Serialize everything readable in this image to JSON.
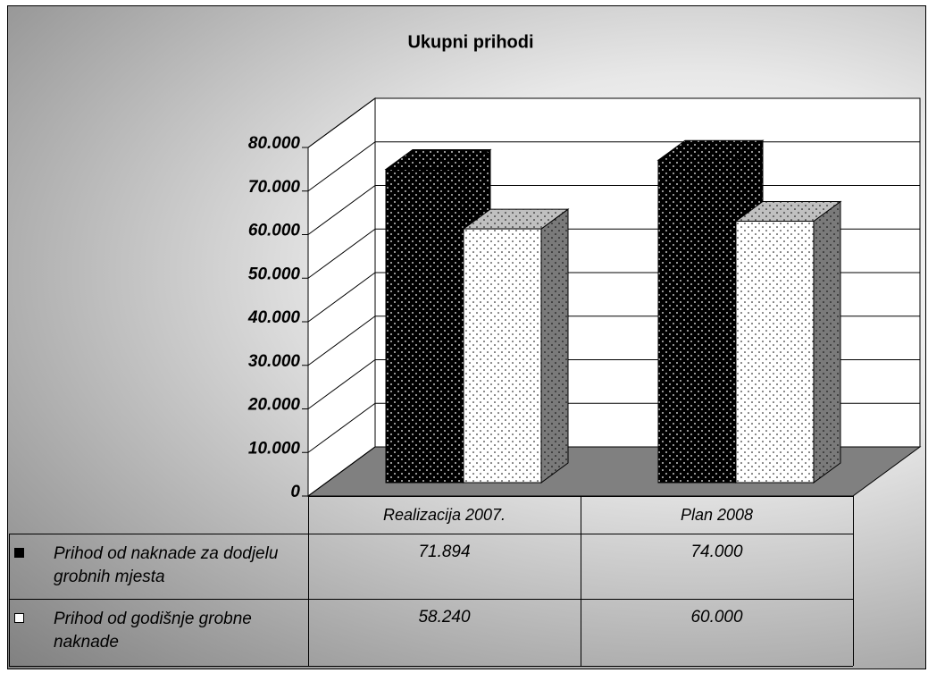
{
  "chart_data": {
    "type": "bar3d",
    "title": "Ukupni prihodi",
    "categories": [
      "Realizacija 2007.",
      "Plan 2008"
    ],
    "series": [
      {
        "name": "Prihod od naknade za dodjelu grobnih mjesta",
        "color": "#000000",
        "values": [
          71894,
          74000
        ],
        "value_labels": [
          "71.894",
          "74.000"
        ]
      },
      {
        "name": "Prihod od godišnje grobne naknade",
        "color": "#ffffff",
        "values": [
          58240,
          60000
        ],
        "value_labels": [
          "58.240",
          "60.000"
        ]
      }
    ],
    "ylim": [
      0,
      80000
    ],
    "yticks": [
      0,
      {
        "value": 10000,
        "label": "10.000"
      },
      {
        "value": 20000,
        "label": "20.000"
      },
      {
        "value": 30000,
        "label": "30.000"
      },
      {
        "value": 40000,
        "label": "40.000"
      },
      {
        "value": 50000,
        "label": "50.000"
      },
      {
        "value": 60000,
        "label": "60.000"
      },
      {
        "value": 70000,
        "label": "70.000"
      },
      {
        "value": 80000,
        "label": "80.000"
      }
    ],
    "grid": true
  }
}
